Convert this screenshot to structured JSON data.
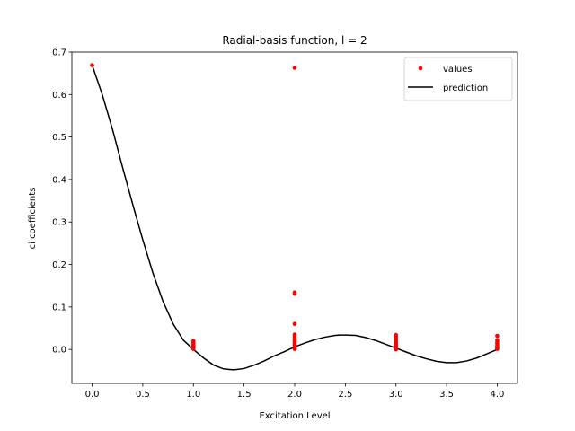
{
  "chart_data": {
    "type": "scatter",
    "title": "Radial-basis function, l = 2",
    "xlabel": "Excitation Level",
    "ylabel": "ci coefficients",
    "xlim": [
      -0.2,
      4.2
    ],
    "ylim": [
      -0.08,
      0.7
    ],
    "xticks": [
      0.0,
      0.5,
      1.0,
      1.5,
      2.0,
      2.5,
      3.0,
      3.5,
      4.0
    ],
    "xtick_labels": [
      "0.0",
      "0.5",
      "1.0",
      "1.5",
      "2.0",
      "2.5",
      "3.0",
      "3.5",
      "4.0"
    ],
    "yticks": [
      0.0,
      0.1,
      0.2,
      0.3,
      0.4,
      0.5,
      0.6,
      0.7
    ],
    "ytick_labels": [
      "0.0",
      "0.1",
      "0.2",
      "0.3",
      "0.4",
      "0.5",
      "0.6",
      "0.7"
    ],
    "grid": false,
    "legend_position": "top-right",
    "series": [
      {
        "name": "values",
        "style": "points",
        "color": "#ff0000",
        "points": [
          [
            0.0,
            0.669
          ],
          [
            1.0,
            0.02
          ],
          [
            1.0,
            0.015
          ],
          [
            1.0,
            0.011
          ],
          [
            1.0,
            0.008
          ],
          [
            1.0,
            0.005
          ],
          [
            1.0,
            0.003
          ],
          [
            1.0,
            0.001
          ],
          [
            2.0,
            0.663
          ],
          [
            2.0,
            0.134
          ],
          [
            2.0,
            0.131
          ],
          [
            2.0,
            0.06
          ],
          [
            2.0,
            0.035
          ],
          [
            2.0,
            0.03
          ],
          [
            2.0,
            0.025
          ],
          [
            2.0,
            0.021
          ],
          [
            2.0,
            0.018
          ],
          [
            2.0,
            0.014
          ],
          [
            2.0,
            0.011
          ],
          [
            2.0,
            0.008
          ],
          [
            2.0,
            0.005
          ],
          [
            2.0,
            0.003
          ],
          [
            2.0,
            0.001
          ],
          [
            3.0,
            0.034
          ],
          [
            3.0,
            0.03
          ],
          [
            3.0,
            0.025
          ],
          [
            3.0,
            0.02
          ],
          [
            3.0,
            0.015
          ],
          [
            3.0,
            0.011
          ],
          [
            3.0,
            0.007
          ],
          [
            3.0,
            0.004
          ],
          [
            3.0,
            0.002
          ],
          [
            3.0,
            0.0
          ],
          [
            4.0,
            0.032
          ],
          [
            4.0,
            0.022
          ],
          [
            4.0,
            0.017
          ],
          [
            4.0,
            0.013
          ],
          [
            4.0,
            0.009
          ],
          [
            4.0,
            0.006
          ],
          [
            4.0,
            0.003
          ],
          [
            4.0,
            0.001
          ]
        ]
      },
      {
        "name": "prediction",
        "style": "line",
        "color": "#000000",
        "points": [
          [
            0.0,
            0.669
          ],
          [
            0.1,
            0.6
          ],
          [
            0.2,
            0.519
          ],
          [
            0.3,
            0.429
          ],
          [
            0.4,
            0.342
          ],
          [
            0.5,
            0.258
          ],
          [
            0.6,
            0.18
          ],
          [
            0.7,
            0.113
          ],
          [
            0.8,
            0.06
          ],
          [
            0.9,
            0.022
          ],
          [
            1.0,
            0.0
          ],
          [
            1.1,
            -0.02
          ],
          [
            1.2,
            -0.037
          ],
          [
            1.3,
            -0.046
          ],
          [
            1.4,
            -0.048
          ],
          [
            1.5,
            -0.045
          ],
          [
            1.6,
            -0.037
          ],
          [
            1.7,
            -0.027
          ],
          [
            1.8,
            -0.015
          ],
          [
            1.9,
            -0.005
          ],
          [
            2.0,
            0.006
          ],
          [
            2.1,
            0.015
          ],
          [
            2.2,
            0.023
          ],
          [
            2.3,
            0.029
          ],
          [
            2.4,
            0.033
          ],
          [
            2.45,
            0.034
          ],
          [
            2.5,
            0.034
          ],
          [
            2.6,
            0.033
          ],
          [
            2.7,
            0.028
          ],
          [
            2.8,
            0.021
          ],
          [
            2.9,
            0.012
          ],
          [
            3.0,
            0.003
          ],
          [
            3.1,
            -0.006
          ],
          [
            3.2,
            -0.015
          ],
          [
            3.3,
            -0.022
          ],
          [
            3.4,
            -0.028
          ],
          [
            3.5,
            -0.031
          ],
          [
            3.55,
            -0.031
          ],
          [
            3.6,
            -0.031
          ],
          [
            3.7,
            -0.027
          ],
          [
            3.8,
            -0.02
          ],
          [
            3.9,
            -0.01
          ],
          [
            4.0,
            0.0
          ]
        ]
      }
    ]
  }
}
